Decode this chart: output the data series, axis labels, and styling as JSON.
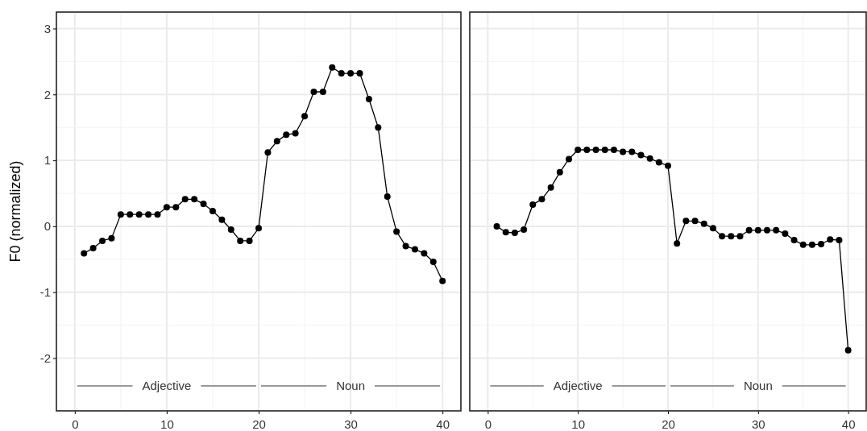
{
  "chart_data": [
    {
      "type": "line",
      "ylabel": "F0 (normalized)",
      "marker": "circle",
      "grid": true,
      "xlim": [
        -2,
        42
      ],
      "ylim": [
        -2.8,
        3.25
      ],
      "xticks": [
        0,
        10,
        20,
        30,
        40
      ],
      "yticks": [
        -2,
        -1,
        0,
        1,
        2,
        3
      ],
      "annotations": [
        "Adjective",
        "Noun"
      ],
      "series": [
        {
          "color": "#000000",
          "x": [
            1,
            2,
            3,
            4,
            5,
            6,
            7,
            8,
            9,
            10,
            11,
            12,
            13,
            14,
            15,
            16,
            17,
            18,
            19,
            20,
            21,
            22,
            23,
            24,
            25,
            26,
            27,
            28,
            29,
            30,
            31,
            32,
            33,
            34,
            35,
            36,
            37,
            38,
            39,
            40
          ],
          "values": [
            -0.41,
            -0.33,
            -0.22,
            -0.18,
            0.18,
            0.18,
            0.18,
            0.18,
            0.18,
            0.29,
            0.29,
            0.41,
            0.41,
            0.34,
            0.23,
            0.1,
            -0.05,
            -0.22,
            -0.22,
            -0.03,
            1.12,
            1.29,
            1.39,
            1.41,
            1.67,
            2.04,
            2.04,
            2.41,
            2.32,
            2.32,
            2.32,
            1.93,
            1.5,
            0.45,
            -0.08,
            -0.3,
            -0.35,
            -0.41,
            -0.54,
            -0.83
          ]
        }
      ]
    },
    {
      "type": "line",
      "marker": "circle",
      "grid": true,
      "tick_labels": "x",
      "xlim": [
        -2,
        42
      ],
      "ylim": [
        -2.8,
        3.25
      ],
      "xticks": [
        0,
        10,
        20,
        30,
        40
      ],
      "yticks": [
        -2,
        -1,
        0,
        1,
        2,
        3
      ],
      "annotations": [
        "Adjective",
        "Noun"
      ],
      "series": [
        {
          "color": "#000000",
          "x": [
            1,
            2,
            3,
            4,
            5,
            6,
            7,
            8,
            9,
            10,
            11,
            12,
            13,
            14,
            15,
            16,
            17,
            18,
            19,
            20,
            21,
            22,
            23,
            24,
            25,
            26,
            27,
            28,
            29,
            30,
            31,
            32,
            33,
            34,
            35,
            36,
            37,
            38,
            39,
            40
          ],
          "values": [
            0,
            -0.09,
            -0.1,
            -0.05,
            0.33,
            0.41,
            0.59,
            0.82,
            1.02,
            1.16,
            1.16,
            1.16,
            1.16,
            1.16,
            1.13,
            1.13,
            1.08,
            1.03,
            0.97,
            0.92,
            -0.26,
            0.08,
            0.08,
            0.04,
            -0.03,
            -0.15,
            -0.15,
            -0.15,
            -0.06,
            -0.06,
            -0.06,
            -0.06,
            -0.11,
            -0.21,
            -0.28,
            -0.28,
            -0.27,
            -0.2,
            -0.21,
            -1.88
          ]
        }
      ]
    }
  ]
}
